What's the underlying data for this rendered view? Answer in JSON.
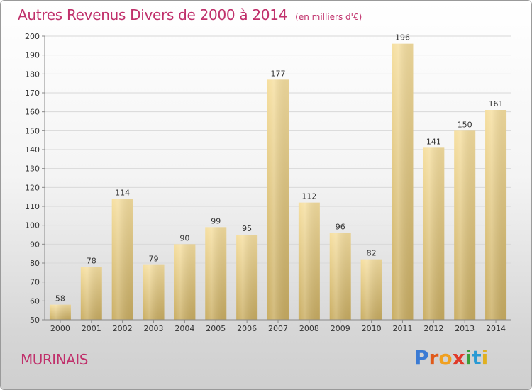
{
  "header": {
    "title": "Autres Revenus Divers de 2000 à 2014",
    "subtitle": "(en milliers d'€)"
  },
  "footer": {
    "commune": "MURINAIS",
    "logo_text": "Proxiti"
  },
  "colors": {
    "title": "#c0306b",
    "bar_light": "#f6dfa0",
    "bar_dark": "#c9ad62",
    "grid": "#d8d8d8",
    "axis_text": "#333333",
    "logo": [
      "#3b7bd4",
      "#e05a1a",
      "#f0a020",
      "#e03a2a",
      "#3aa03a",
      "#2a9ad4",
      "#e0b020"
    ]
  },
  "chart_data": {
    "type": "bar",
    "categories": [
      "2000",
      "2001",
      "2002",
      "2003",
      "2004",
      "2005",
      "2006",
      "2007",
      "2008",
      "2009",
      "2010",
      "2011",
      "2012",
      "2013",
      "2014"
    ],
    "values": [
      58,
      78,
      114,
      79,
      90,
      99,
      95,
      177,
      112,
      96,
      82,
      196,
      141,
      150,
      161
    ],
    "ylim": [
      50,
      200
    ],
    "yticks": [
      50,
      60,
      70,
      80,
      90,
      100,
      110,
      120,
      130,
      140,
      150,
      160,
      170,
      180,
      190,
      200
    ],
    "grid": true,
    "data_labels": true
  }
}
